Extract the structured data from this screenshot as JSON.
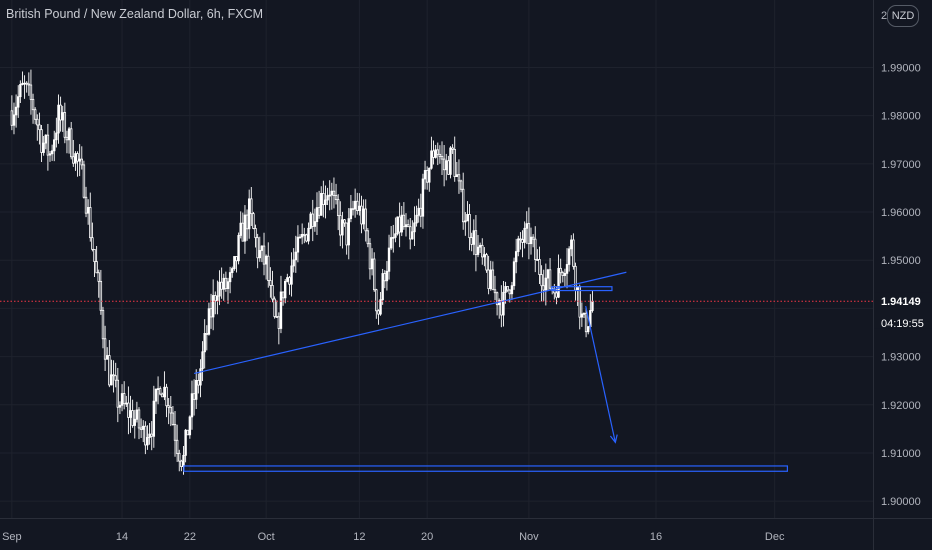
{
  "header": {
    "title": "British Pound / New Zealand Dollar, 6h, FXCM",
    "currency_badge": "NZD"
  },
  "price_scale": {
    "current_price": "1.94149",
    "countdown": "04:19:55",
    "top_partial_label": "2"
  },
  "colors": {
    "background": "#131722",
    "candle": "#ffffff",
    "drawing": "#2962ff",
    "price_line": "#f23645",
    "axis_text": "#b2b5be",
    "grid": "#1e222d"
  },
  "chart_data": {
    "type": "candlestick",
    "title": "British Pound / New Zealand Dollar, 6h, FXCM",
    "ylim": [
      1.8965,
      2.004
    ],
    "y_ticks": [
      "1.90000",
      "1.91000",
      "1.92000",
      "1.93000",
      "1.94000",
      "1.95000",
      "1.96000",
      "1.97000",
      "1.98000",
      "1.99000"
    ],
    "y_tick_values": [
      1.9,
      1.91,
      1.92,
      1.93,
      1.94,
      1.95,
      1.96,
      1.97,
      1.98,
      1.99
    ],
    "x_tick_labels": [
      {
        "label": "Sep",
        "day": 0
      },
      {
        "label": "14",
        "day": 13
      },
      {
        "label": "22",
        "day": 21
      },
      {
        "label": "Oct",
        "day": 30
      },
      {
        "label": "12",
        "day": 41
      },
      {
        "label": "20",
        "day": 49
      },
      {
        "label": "Nov",
        "day": 61
      },
      {
        "label": "16",
        "day": 76
      },
      {
        "label": "Dec",
        "day": 90
      }
    ],
    "xlim_days": [
      -1.4,
      101.6
    ],
    "last_price": 1.94149,
    "close_path": [
      [
        0,
        1.981
      ],
      [
        1.4,
        1.986
      ],
      [
        2.5,
        1.982
      ],
      [
        3.5,
        1.975
      ],
      [
        4.5,
        1.972
      ],
      [
        5.5,
        1.98
      ],
      [
        7,
        1.974
      ],
      [
        8.5,
        1.966
      ],
      [
        9.5,
        1.953
      ],
      [
        10.2,
        1.944
      ],
      [
        10.7,
        1.936
      ],
      [
        11.4,
        1.927
      ],
      [
        12.5,
        1.921
      ],
      [
        13.5,
        1.919
      ],
      [
        14.5,
        1.917
      ],
      [
        15.5,
        1.914
      ],
      [
        16.5,
        1.916
      ],
      [
        17.5,
        1.925
      ],
      [
        18.5,
        1.921
      ],
      [
        19.5,
        1.912
      ],
      [
        20.2,
        1.908
      ],
      [
        21,
        1.918
      ],
      [
        22,
        1.925
      ],
      [
        23,
        1.935
      ],
      [
        24.2,
        1.945
      ],
      [
        25,
        1.944
      ],
      [
        26,
        1.946
      ],
      [
        27,
        1.955
      ],
      [
        28,
        1.96
      ],
      [
        29,
        1.952
      ],
      [
        30,
        1.949
      ],
      [
        30.7,
        1.94
      ],
      [
        31.2,
        1.935
      ],
      [
        32,
        1.944
      ],
      [
        33,
        1.949
      ],
      [
        34.5,
        1.955
      ],
      [
        35.5,
        1.96
      ],
      [
        36.5,
        1.963
      ],
      [
        37.5,
        1.965
      ],
      [
        38.5,
        1.958
      ],
      [
        39.5,
        1.955
      ],
      [
        40.5,
        1.962
      ],
      [
        41.5,
        1.958
      ],
      [
        42.5,
        1.948
      ],
      [
        43.2,
        1.939
      ],
      [
        44,
        1.948
      ],
      [
        45,
        1.954
      ],
      [
        46,
        1.958
      ],
      [
        47,
        1.953
      ],
      [
        48,
        1.96
      ],
      [
        49,
        1.968
      ],
      [
        50,
        1.974
      ],
      [
        51,
        1.969
      ],
      [
        52,
        1.972
      ],
      [
        53,
        1.962
      ],
      [
        54,
        1.957
      ],
      [
        55,
        1.952
      ],
      [
        56,
        1.947
      ],
      [
        57,
        1.943
      ],
      [
        58,
        1.941
      ],
      [
        59,
        1.947
      ],
      [
        60,
        1.954
      ],
      [
        61,
        1.955
      ],
      [
        62,
        1.949
      ],
      [
        63,
        1.946
      ],
      [
        64,
        1.944
      ],
      [
        65,
        1.949
      ],
      [
        66,
        1.953
      ],
      [
        66.8,
        1.943
      ],
      [
        67.4,
        1.936
      ],
      [
        68,
        1.938
      ],
      [
        68.5,
        1.941
      ]
    ],
    "drawings": [
      {
        "kind": "trendline",
        "from": {
          "day": 21.5,
          "price": 1.9265
        },
        "to": {
          "day": 72.5,
          "price": 1.9475
        }
      },
      {
        "kind": "rectangle",
        "from": {
          "day": 20.3,
          "price": 1.9073
        },
        "to": {
          "day": 91.5,
          "price": 1.9062
        }
      },
      {
        "kind": "rectangle",
        "from": {
          "day": 63.7,
          "price": 1.9445
        },
        "to": {
          "day": 70.8,
          "price": 1.9437
        }
      },
      {
        "kind": "arrow",
        "from": {
          "day": 67.7,
          "price": 1.9405
        },
        "to": {
          "day": 71.2,
          "price": 1.9122
        }
      }
    ]
  }
}
